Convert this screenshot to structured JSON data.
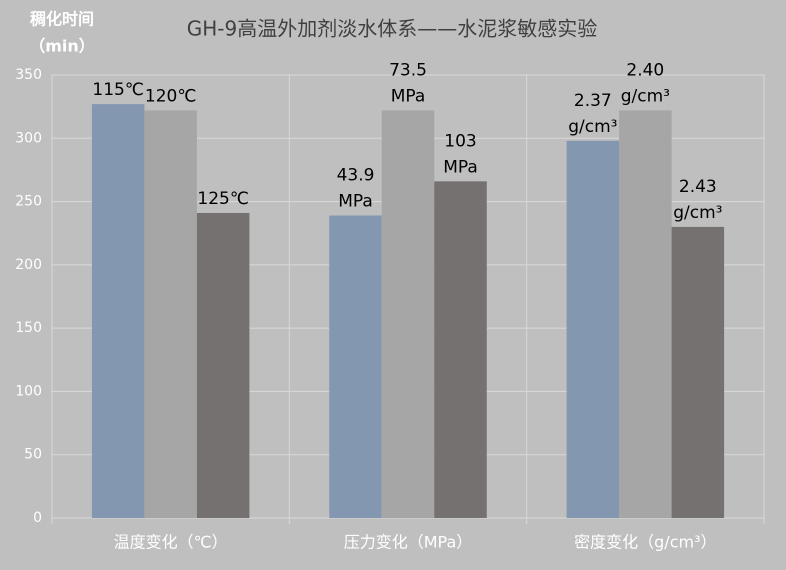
{
  "chart_data": {
    "type": "bar",
    "title": "GH-9高温外加剂淡水体系——水泥浆敏感实验",
    "y_label": [
      "稠化时间",
      "（min）"
    ],
    "categories": [
      "温度变化（℃）",
      "压力变化（MPa）",
      "密度变化（g/cm³）"
    ],
    "series": [
      {
        "color": "#8497b0",
        "values": [
          327,
          239,
          298
        ],
        "labels": [
          [
            "115℃"
          ],
          [
            "43.9",
            "MPa"
          ],
          [
            "2.37",
            "g/cm³"
          ]
        ]
      },
      {
        "color": "#a6a6a6",
        "values": [
          322,
          322,
          322
        ],
        "labels": [
          [
            "120℃"
          ],
          [
            "73.5",
            "MPa"
          ],
          [
            "2.40",
            "g/cm³"
          ]
        ]
      },
      {
        "color": "#767171",
        "values": [
          241,
          266,
          230
        ],
        "labels": [
          [
            "125℃"
          ],
          [
            "103",
            "MPa"
          ],
          [
            "2.43",
            "g/cm³"
          ]
        ]
      }
    ],
    "ylim": [
      0,
      350
    ],
    "yticks": [
      0,
      50,
      100,
      150,
      200,
      250,
      300,
      350
    ],
    "grid": true
  }
}
